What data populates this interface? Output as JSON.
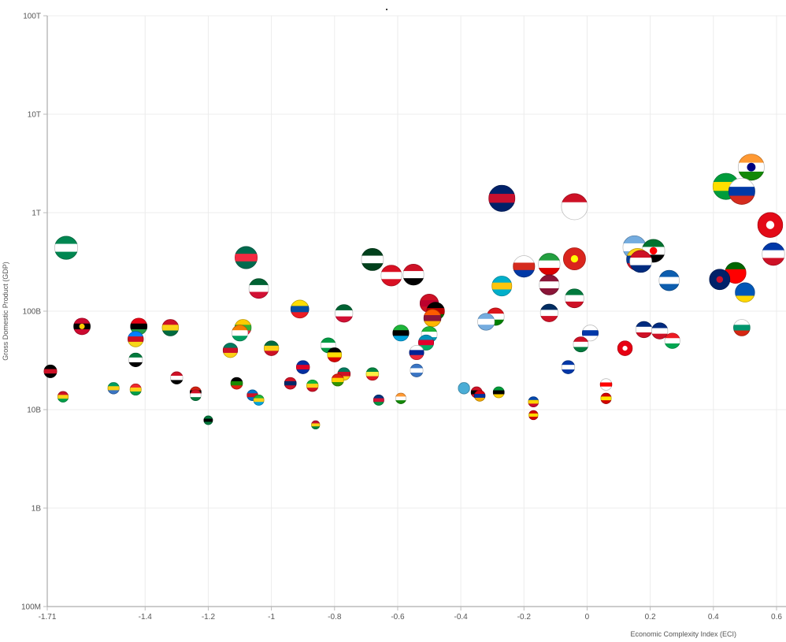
{
  "chart_data": {
    "type": "scatter",
    "title": "",
    "xlabel": "Economic Complexity Index (ECI)",
    "ylabel": "Gross Domestic Product (GDP)",
    "x_scale": "linear",
    "y_scale": "log",
    "xlim": [
      -1.71,
      0.63
    ],
    "ylim": [
      100000000,
      100000000000000
    ],
    "grid": true,
    "x_ticks": [
      "-1.71",
      "-1.4",
      "-1.2",
      "-1",
      "-0.8",
      "-0.6",
      "-0.4",
      "-0.2",
      "0",
      "0.2",
      "0.4",
      "0.6"
    ],
    "y_ticks": [
      {
        "label": "100M",
        "value": 100000000
      },
      {
        "label": "1B",
        "value": 1000000000
      },
      {
        "label": "10B",
        "value": 10000000000
      },
      {
        "label": "100B",
        "value": 100000000000
      },
      {
        "label": "1T",
        "value": 1000000000000
      },
      {
        "label": "10T",
        "value": 10000000000000
      },
      {
        "label": "100T",
        "value": 100000000000000
      }
    ],
    "points": [
      {
        "x": 0.52,
        "y": 2900000000000,
        "flag": [
          "#ff9933",
          "#ffffff",
          "#138808"
        ],
        "emblem": "#000080"
      },
      {
        "x": 0.44,
        "y": 1850000000000,
        "flag": [
          "#009c3b",
          "#ffdf00",
          "#009c3b"
        ]
      },
      {
        "x": 0.49,
        "y": 1650000000000,
        "flag": [
          "#ffffff",
          "#0039a6",
          "#d52b1e"
        ]
      },
      {
        "x": 0.58,
        "y": 750000000000,
        "flag": [
          "#e30a17",
          "#e30a17",
          "#e30a17"
        ],
        "emblem": "#ffffff"
      },
      {
        "x": 0.59,
        "y": 380000000000,
        "flag": [
          "#0038a8",
          "#ffffff",
          "#ce1126"
        ]
      },
      {
        "x": 0.47,
        "y": 245000000000,
        "flag": [
          "#006600",
          "#ff0000",
          "#ff0000"
        ]
      },
      {
        "x": 0.42,
        "y": 210000000000,
        "flag": [
          "#012169",
          "#012169",
          "#012169"
        ],
        "emblem": "#c8102e"
      },
      {
        "x": 0.5,
        "y": 155000000000,
        "flag": [
          "#0057b7",
          "#0057b7",
          "#ffd700"
        ]
      },
      {
        "x": 0.49,
        "y": 68000000000,
        "flag": [
          "#ffffff",
          "#00966e",
          "#d62612"
        ]
      },
      {
        "x": 0.26,
        "y": 205000000000,
        "flag": [
          "#0d5eaf",
          "#ffffff",
          "#0d5eaf"
        ]
      },
      {
        "x": 0.21,
        "y": 410000000000,
        "flag": [
          "#00732f",
          "#ffffff",
          "#000000"
        ],
        "emblem": "#ff0000"
      },
      {
        "x": 0.15,
        "y": 445000000000,
        "flag": [
          "#74acdf",
          "#ffffff",
          "#74acdf"
        ]
      },
      {
        "x": 0.17,
        "y": 320000000000,
        "flag": [
          "#ce1126",
          "#ffffff",
          "#002b7f"
        ]
      },
      {
        "x": 0.16,
        "y": 335000000000,
        "flag": [
          "#fcd116",
          "#003893",
          "#ce1126"
        ]
      },
      {
        "x": 0.18,
        "y": 65000000000,
        "flag": [
          "#002b7f",
          "#ffffff",
          "#ce1126"
        ]
      },
      {
        "x": 0.23,
        "y": 63000000000,
        "flag": [
          "#002b7f",
          "#ffffff",
          "#ce1126"
        ]
      },
      {
        "x": 0.27,
        "y": 50000000000,
        "flag": [
          "#ed1c24",
          "#ffffff",
          "#00a651"
        ]
      },
      {
        "x": 0.12,
        "y": 42000000000,
        "flag": [
          "#e70013",
          "#e70013",
          "#e70013"
        ],
        "emblem": "#ffffff"
      },
      {
        "x": 0.06,
        "y": 18000000000,
        "flag": [
          "#ffffff",
          "#ff0000",
          "#ffffff"
        ]
      },
      {
        "x": 0.06,
        "y": 13000000000,
        "flag": [
          "#d20000",
          "#ffe600",
          "#d20000"
        ]
      },
      {
        "x": 0.01,
        "y": 60000000000,
        "flag": [
          "#ffffff",
          "#0038a8",
          "#ffffff"
        ]
      },
      {
        "x": -0.04,
        "y": 1150000000000,
        "flag": [
          "#ce1126",
          "#ffffff",
          "#ffffff"
        ]
      },
      {
        "x": -0.04,
        "y": 340000000000,
        "flag": [
          "#da251d",
          "#da251d",
          "#da251d"
        ],
        "emblem": "#ffff00"
      },
      {
        "x": -0.04,
        "y": 135000000000,
        "flag": [
          "#007a3d",
          "#ffffff",
          "#ce1126"
        ]
      },
      {
        "x": -0.02,
        "y": 46000000000,
        "flag": [
          "#ce1126",
          "#ffffff",
          "#007a3d"
        ]
      },
      {
        "x": -0.06,
        "y": 27000000000,
        "flag": [
          "#0038a8",
          "#ffffff",
          "#0038a8"
        ]
      },
      {
        "x": -0.12,
        "y": 300000000000,
        "flag": [
          "#239f40",
          "#ffffff",
          "#da0000"
        ]
      },
      {
        "x": -0.12,
        "y": 185000000000,
        "flag": [
          "#8a1538",
          "#ffffff",
          "#8a1538"
        ]
      },
      {
        "x": -0.12,
        "y": 96000000000,
        "flag": [
          "#002d62",
          "#ffffff",
          "#ce1126"
        ]
      },
      {
        "x": -0.2,
        "y": 285000000000,
        "flag": [
          "#ffffff",
          "#d52b1e",
          "#0039a6"
        ]
      },
      {
        "x": -0.17,
        "y": 12000000000,
        "flag": [
          "#0046ae",
          "#ffd200",
          "#cc092f"
        ]
      },
      {
        "x": -0.17,
        "y": 8800000000,
        "flag": [
          "#d20000",
          "#ffd800",
          "#d20000"
        ]
      },
      {
        "x": -0.27,
        "y": 1400000000000,
        "flag": [
          "#012169",
          "#c8102e",
          "#012169"
        ]
      },
      {
        "x": -0.27,
        "y": 180000000000,
        "flag": [
          "#00afca",
          "#fec50c",
          "#00afca"
        ]
      },
      {
        "x": -0.29,
        "y": 88000000000,
        "flag": [
          "#db161b",
          "#ffffff",
          "#008000"
        ]
      },
      {
        "x": -0.32,
        "y": 78000000000,
        "flag": [
          "#74acdf",
          "#ffffff",
          "#74acdf"
        ]
      },
      {
        "x": -0.28,
        "y": 15000000000,
        "flag": [
          "#009b3a",
          "#000000",
          "#fed100"
        ]
      },
      {
        "x": -0.35,
        "y": 15000000000,
        "flag": [
          "#ce1126",
          "#000000",
          "#ce1126"
        ]
      },
      {
        "x": -0.34,
        "y": 13800000000,
        "flag": [
          "#d90012",
          "#0033a0",
          "#f2a800"
        ]
      },
      {
        "x": -0.39,
        "y": 16500000000,
        "flag": [
          "#4aadd6",
          "#4aadd6",
          "#4aadd6"
        ]
      },
      {
        "x": -0.55,
        "y": 235000000000,
        "flag": [
          "#ce1126",
          "#ffffff",
          "#000000"
        ]
      },
      {
        "x": -0.62,
        "y": 230000000000,
        "flag": [
          "#d91023",
          "#ffffff",
          "#d91023"
        ]
      },
      {
        "x": -0.68,
        "y": 335000000000,
        "flag": [
          "#01411c",
          "#ffffff",
          "#01411c"
        ]
      },
      {
        "x": -0.5,
        "y": 120000000000,
        "flag": [
          "#ce1126",
          "#bc002d",
          "#ce1126"
        ]
      },
      {
        "x": -0.48,
        "y": 100000000000,
        "flag": [
          "#000000",
          "#bb0000",
          "#006600"
        ]
      },
      {
        "x": -0.49,
        "y": 85000000000,
        "flag": [
          "#ff5b00",
          "#8d153a",
          "#ffb700"
        ]
      },
      {
        "x": -0.59,
        "y": 60000000000,
        "flag": [
          "#1eb53a",
          "#000000",
          "#00a3dd"
        ]
      },
      {
        "x": -0.5,
        "y": 58000000000,
        "flag": [
          "#1eb53a",
          "#ffffff",
          "#0099b5"
        ]
      },
      {
        "x": -0.51,
        "y": 48000000000,
        "flag": [
          "#0092bc",
          "#e4002b",
          "#00af66"
        ]
      },
      {
        "x": -0.54,
        "y": 38000000000,
        "flag": [
          "#ffffff",
          "#002395",
          "#ed2939"
        ]
      },
      {
        "x": -0.54,
        "y": 25000000000,
        "flag": [
          "#3a75c4",
          "#ffffff",
          "#3a75c4"
        ]
      },
      {
        "x": -0.59,
        "y": 13000000000,
        "flag": [
          "#ff9933",
          "#ffffff",
          "#138808"
        ]
      },
      {
        "x": -0.66,
        "y": 12500000000,
        "flag": [
          "#003580",
          "#d21034",
          "#009543"
        ]
      },
      {
        "x": -0.68,
        "y": 23000000000,
        "flag": [
          "#00853f",
          "#fdef42",
          "#e31b23"
        ]
      },
      {
        "x": -0.77,
        "y": 95000000000,
        "flag": [
          "#006233",
          "#ffffff",
          "#d21034"
        ]
      },
      {
        "x": -0.8,
        "y": 36000000000,
        "flag": [
          "#000000",
          "#fcdc04",
          "#d90000"
        ]
      },
      {
        "x": -0.77,
        "y": 23000000000,
        "flag": [
          "#007a5e",
          "#ce1126",
          "#fcd116"
        ]
      },
      {
        "x": -0.79,
        "y": 20000000000,
        "flag": [
          "#de2010",
          "#ffd200",
          "#319400"
        ]
      },
      {
        "x": -0.82,
        "y": 45000000000,
        "flag": [
          "#009a44",
          "#ffffff",
          "#009a44"
        ]
      },
      {
        "x": -0.86,
        "y": 7000000000,
        "flag": [
          "#c8102e",
          "#fcd116",
          "#00843d"
        ]
      },
      {
        "x": -0.87,
        "y": 17500000000,
        "flag": [
          "#14b53a",
          "#fcd116",
          "#ce1126"
        ]
      },
      {
        "x": -0.91,
        "y": 105000000000,
        "flag": [
          "#ffdd00",
          "#034ea2",
          "#ed1c24"
        ]
      },
      {
        "x": -0.9,
        "y": 27000000000,
        "flag": [
          "#032ea1",
          "#e00025",
          "#032ea1"
        ]
      },
      {
        "x": -0.94,
        "y": 18500000000,
        "flag": [
          "#ce1126",
          "#002868",
          "#ce1126"
        ]
      },
      {
        "x": -1.0,
        "y": 42000000000,
        "flag": [
          "#006b3f",
          "#fcd116",
          "#ce1126"
        ]
      },
      {
        "x": -1.04,
        "y": 170000000000,
        "flag": [
          "#006233",
          "#ffffff",
          "#d21034"
        ]
      },
      {
        "x": -1.08,
        "y": 350000000000,
        "flag": [
          "#006a4e",
          "#f42a41",
          "#006a4e"
        ]
      },
      {
        "x": -1.09,
        "y": 68000000000,
        "flag": [
          "#fecb00",
          "#34b233",
          "#ea2839"
        ]
      },
      {
        "x": -1.1,
        "y": 60000000000,
        "flag": [
          "#f77f00",
          "#ffffff",
          "#009e60"
        ]
      },
      {
        "x": -1.13,
        "y": 40000000000,
        "flag": [
          "#007a5e",
          "#ce1126",
          "#fcd116"
        ]
      },
      {
        "x": -1.06,
        "y": 14000000000,
        "flag": [
          "#0072c6",
          "#ce1126",
          "#0072c6"
        ]
      },
      {
        "x": -1.04,
        "y": 12500000000,
        "flag": [
          "#1eb53a",
          "#fcd116",
          "#00a3dd"
        ]
      },
      {
        "x": -1.11,
        "y": 18500000000,
        "flag": [
          "#000000",
          "#198a00",
          "#de2010"
        ]
      },
      {
        "x": -1.2,
        "y": 7800000000,
        "flag": [
          "#007a3d",
          "#000000",
          "#007a3d"
        ]
      },
      {
        "x": -1.24,
        "y": 15000000000,
        "flag": [
          "#d32011",
          "#000000",
          "#007a36"
        ]
      },
      {
        "x": -1.24,
        "y": 14000000000,
        "flag": [
          "#ce1126",
          "#ffffff",
          "#007a3d"
        ]
      },
      {
        "x": -1.3,
        "y": 21000000000,
        "flag": [
          "#ce1126",
          "#ffffff",
          "#000000"
        ]
      },
      {
        "x": -1.32,
        "y": 68000000000,
        "flag": [
          "#ce1126",
          "#fcd116",
          "#006b3f"
        ]
      },
      {
        "x": -1.42,
        "y": 70000000000,
        "flag": [
          "#e70013",
          "#000000",
          "#239e46"
        ]
      },
      {
        "x": -1.43,
        "y": 52000000000,
        "flag": [
          "#007fff",
          "#ce1021",
          "#f7d618"
        ]
      },
      {
        "x": -1.43,
        "y": 32000000000,
        "flag": [
          "#007a3d",
          "#ffffff",
          "#000000"
        ]
      },
      {
        "x": -1.43,
        "y": 16000000000,
        "flag": [
          "#ef2b2d",
          "#fcd116",
          "#009e49"
        ]
      },
      {
        "x": -1.5,
        "y": 16500000000,
        "flag": [
          "#009e60",
          "#fcd116",
          "#3a75c4"
        ]
      },
      {
        "x": -1.6,
        "y": 70000000000,
        "flag": [
          "#cc092f",
          "#000000",
          "#cc092f"
        ],
        "emblem": "#ffcb00"
      },
      {
        "x": -1.65,
        "y": 440000000000,
        "flag": [
          "#008751",
          "#ffffff",
          "#008751"
        ]
      },
      {
        "x": -1.7,
        "y": 24500000000,
        "flag": [
          "#000000",
          "#ce1126",
          "#000000"
        ]
      },
      {
        "x": -1.66,
        "y": 13500000000,
        "flag": [
          "#ce1126",
          "#fcd116",
          "#009e49"
        ]
      }
    ]
  }
}
